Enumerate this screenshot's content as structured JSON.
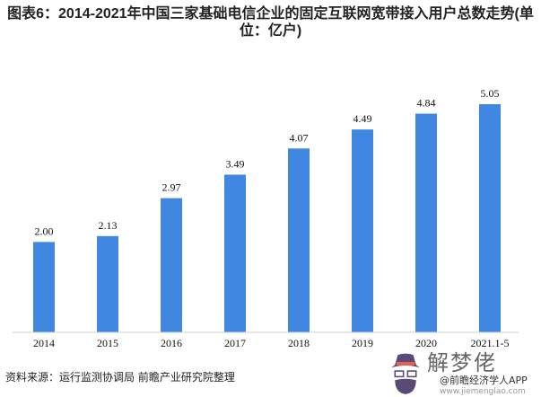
{
  "chart_data": {
    "type": "bar",
    "title": "图表6：2014-2021年中国三家基础电信企业的固定互联网宽带接入用户总数走势(单位：亿户)",
    "categories": [
      "2014",
      "2015",
      "2016",
      "2017",
      "2018",
      "2019",
      "2020",
      "2021.1-5"
    ],
    "values": [
      2.0,
      2.13,
      2.97,
      3.49,
      4.07,
      4.49,
      4.84,
      5.05
    ],
    "data_labels": [
      "2.00",
      "2.13",
      "2.97",
      "3.49",
      "4.07",
      "4.49",
      "4.84",
      "5.05"
    ],
    "ylim": [
      0,
      5.05
    ],
    "grid": false,
    "bar_color": "#3f87e0",
    "xlabel": "",
    "ylabel": ""
  },
  "source": "资料来源：运行监测协调局 前瞻产业研究院整理",
  "watermark": {
    "brand": "解梦佬",
    "handle": "@前瞻经济学人APP",
    "url": "www.jiemenglao.com"
  }
}
